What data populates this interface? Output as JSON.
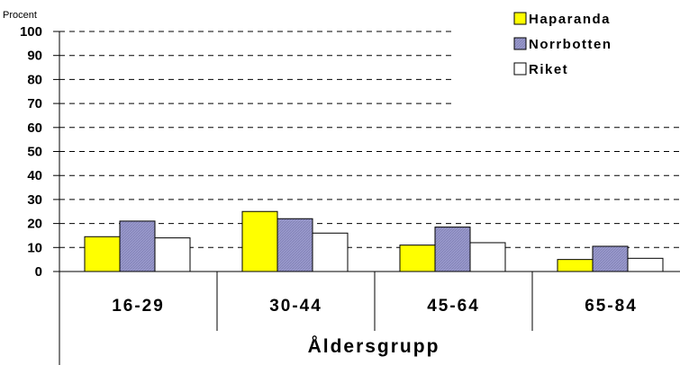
{
  "chart_data": {
    "type": "bar",
    "title": "",
    "ylabel": "Procent",
    "xlabel": "Åldersgrupp",
    "categories": [
      "16-29",
      "30-44",
      "45-64",
      "65-84"
    ],
    "ylim": [
      0,
      100
    ],
    "yticks": [
      0,
      10,
      20,
      30,
      40,
      50,
      60,
      70,
      80,
      90,
      100
    ],
    "grid": "dashed horizontal",
    "legend_position": "top-right",
    "series": [
      {
        "name": "Haparanda",
        "color": "#ffff00",
        "values": [
          14.5,
          25,
          11,
          5
        ]
      },
      {
        "name": "Norrbotten",
        "color": "#9999cc",
        "values": [
          21,
          22,
          18.5,
          10.5
        ]
      },
      {
        "name": "Riket",
        "color": "#ffffff",
        "values": [
          14,
          16,
          12,
          5.5
        ]
      }
    ]
  }
}
